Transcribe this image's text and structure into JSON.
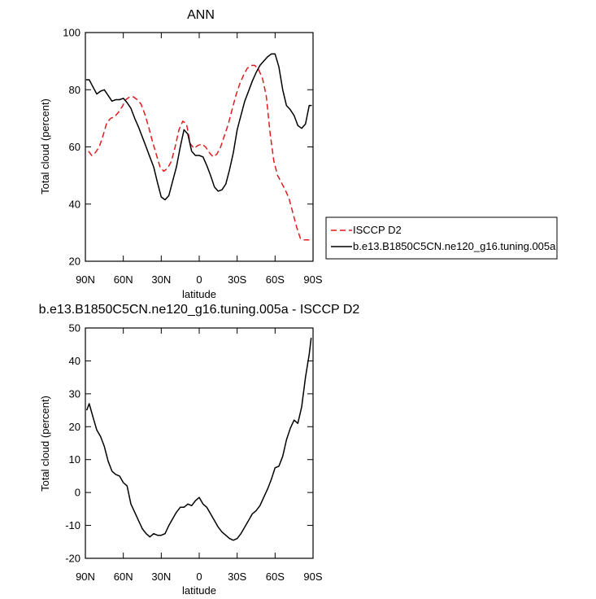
{
  "chart_data": [
    {
      "type": "line",
      "title": "ANN",
      "xlabel": "latitude",
      "ylabel": "Total cloud (percent)",
      "ylim": [
        20,
        100
      ],
      "yticks": [
        20,
        40,
        60,
        80,
        100
      ],
      "xlim": [
        90,
        -90
      ],
      "xticks": [
        90,
        60,
        30,
        0,
        -30,
        -60,
        -90
      ],
      "xtick_labels": [
        "90N",
        "60N",
        "30N",
        "0",
        "30S",
        "60S",
        "90S"
      ],
      "grid": false,
      "legend": "bottom-right, outside plot",
      "series": [
        {
          "name": "ISCCP D2",
          "color": "#e31a1c",
          "dash": "dashed",
          "x": [
            87.5,
            85,
            82,
            79,
            76,
            73,
            70,
            67,
            64,
            61,
            58,
            55,
            52,
            49,
            46,
            43,
            40,
            37,
            34,
            31,
            28,
            25,
            22,
            19,
            16,
            13,
            10,
            7,
            4,
            1,
            -2,
            -5,
            -8,
            -11,
            -14,
            -17,
            -20,
            -23,
            -26,
            -29,
            -32,
            -35,
            -38,
            -41,
            -44,
            -47,
            -50,
            -53,
            -56,
            -59,
            -62,
            -65,
            -68,
            -71,
            -74,
            -77,
            -80,
            -83,
            -86,
            -87.5
          ],
          "y": [
            58.5,
            57.0,
            58.0,
            60.0,
            64.0,
            68.5,
            70.0,
            70.5,
            72.0,
            74.0,
            76.5,
            77.5,
            77.5,
            76.5,
            75.0,
            71.5,
            67.0,
            62.0,
            57.5,
            53.0,
            51.5,
            52.5,
            55.0,
            60.0,
            66.0,
            69.0,
            68.0,
            61.0,
            59.5,
            60.5,
            61.0,
            60.0,
            58.0,
            56.5,
            57.5,
            60.0,
            64.0,
            68.0,
            73.0,
            78.0,
            82.0,
            85.0,
            87.5,
            88.5,
            88.5,
            87.0,
            84.0,
            78.0,
            65.0,
            55.0,
            50.0,
            47.5,
            45.0,
            42.0,
            37.0,
            32.0,
            28.0,
            27.5,
            27.5,
            27.5
          ]
        },
        {
          "name": "b.e13.B1850C5CN.ne120_g16.tuning.005a",
          "color": "#000000",
          "dash": "solid",
          "x": [
            89.5,
            87,
            84,
            81,
            78,
            75,
            72,
            69,
            66,
            63,
            60,
            57,
            54,
            51,
            48,
            45,
            42,
            39,
            36,
            33,
            30,
            27,
            24,
            21,
            18,
            15,
            12,
            9,
            6,
            3,
            0,
            -3,
            -6,
            -9,
            -12,
            -15,
            -18,
            -21,
            -24,
            -27,
            -30,
            -33,
            -36,
            -39,
            -42,
            -45,
            -48,
            -51,
            -54,
            -57,
            -60,
            -63,
            -66,
            -69,
            -72,
            -75,
            -78,
            -81,
            -84,
            -87,
            -89
          ],
          "y": [
            83.5,
            83.5,
            81.0,
            78.5,
            79.5,
            80.0,
            78.0,
            76.0,
            76.5,
            76.5,
            77.0,
            75.5,
            73.5,
            70.0,
            67.0,
            63.5,
            60.0,
            56.5,
            53.0,
            47.5,
            42.5,
            41.5,
            43.0,
            48.0,
            53.0,
            60.0,
            66.0,
            64.5,
            58.5,
            57.0,
            57.0,
            56.5,
            53.5,
            50.0,
            46.0,
            44.5,
            45.0,
            47.0,
            52.0,
            58.0,
            66.0,
            71.0,
            76.0,
            79.5,
            83.0,
            86.0,
            88.5,
            90.0,
            91.5,
            92.5,
            92.5,
            88.0,
            80.0,
            74.5,
            73.0,
            71.0,
            67.5,
            66.5,
            68.0,
            74.5,
            74.5
          ]
        }
      ]
    },
    {
      "type": "line",
      "title": "b.e13.B1850C5CN.ne120_g16.tuning.005a - ISCCP D2",
      "xlabel": "latitude",
      "ylabel": "Total cloud (percent)",
      "ylim": [
        -20,
        50
      ],
      "yticks": [
        -20,
        -10,
        0,
        10,
        20,
        30,
        40,
        50
      ],
      "xlim": [
        90,
        -90
      ],
      "xticks": [
        90,
        60,
        30,
        0,
        -30,
        -60,
        -90
      ],
      "xtick_labels": [
        "90N",
        "60N",
        "30N",
        "0",
        "30S",
        "60S",
        "90S"
      ],
      "grid": false,
      "series": [
        {
          "color": "#000000",
          "dash": "solid",
          "x": [
            89,
            87,
            84,
            81,
            78,
            75,
            72,
            69,
            66,
            63,
            60,
            57,
            54,
            51,
            48,
            45,
            42,
            39,
            36,
            33,
            30,
            27,
            24,
            21,
            18,
            15,
            12,
            9,
            6,
            3,
            0,
            -3,
            -6,
            -9,
            -12,
            -15,
            -18,
            -21,
            -24,
            -27,
            -30,
            -33,
            -36,
            -39,
            -42,
            -45,
            -48,
            -51,
            -54,
            -57,
            -60,
            -63,
            -66,
            -69,
            -72,
            -75,
            -78,
            -81,
            -84,
            -87,
            -88.5
          ],
          "y": [
            25.0,
            27.0,
            23.0,
            19.0,
            17.0,
            14.0,
            9.5,
            6.5,
            5.5,
            5.0,
            3.0,
            2.0,
            -3.5,
            -6.0,
            -8.5,
            -11.0,
            -12.5,
            -13.5,
            -12.5,
            -13.0,
            -13.0,
            -12.5,
            -10.0,
            -8.0,
            -6.0,
            -4.5,
            -4.5,
            -3.5,
            -4.0,
            -2.5,
            -1.5,
            -3.5,
            -4.5,
            -6.5,
            -8.5,
            -10.5,
            -12.0,
            -13.0,
            -14.0,
            -14.5,
            -14.0,
            -12.5,
            -10.5,
            -8.5,
            -6.5,
            -5.5,
            -4.0,
            -1.5,
            1.0,
            4.0,
            7.5,
            8.0,
            11.0,
            16.0,
            19.5,
            22.0,
            21.0,
            26.0,
            35.0,
            42.0,
            47.0
          ]
        }
      ]
    }
  ]
}
